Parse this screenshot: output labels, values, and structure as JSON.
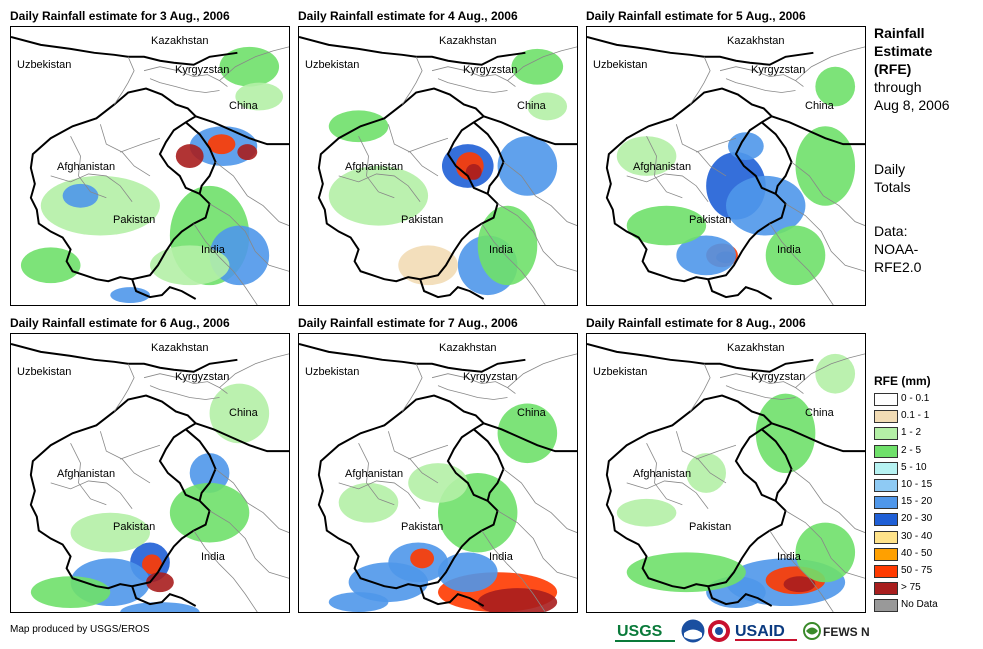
{
  "panels": [
    {
      "title": "Daily Rainfall estimate for 3 Aug., 2006"
    },
    {
      "title": "Daily Rainfall estimate for 4 Aug., 2006"
    },
    {
      "title": "Daily Rainfall estimate for 5 Aug., 2006"
    },
    {
      "title": "Daily Rainfall estimate for 6 Aug., 2006"
    },
    {
      "title": "Daily Rainfall estimate for 7 Aug., 2006"
    },
    {
      "title": "Daily Rainfall estimate for 8 Aug., 2006"
    }
  ],
  "map_labels": {
    "kazakhstan": "Kazakhstan",
    "uzbekistan": "Uzbekistan",
    "kyrgyzstan": "Kyrgyzstan",
    "china": "China",
    "afghanistan": "Afghanistan",
    "pakistan": "Pakistan",
    "india": "India"
  },
  "side": {
    "title_lines": [
      "Rainfall",
      "Estimate",
      "(RFE)"
    ],
    "through_lines": [
      "through",
      "Aug 8, 2006"
    ],
    "totals_lines": [
      "Daily",
      "Totals"
    ],
    "data_lines": [
      "Data:",
      "NOAA-",
      "RFE2.0"
    ]
  },
  "legend": {
    "title": "RFE (mm)",
    "items": [
      {
        "label": "0 - 0.1",
        "color": "#ffffff"
      },
      {
        "label": "0.1 - 1",
        "color": "#f2dcb5"
      },
      {
        "label": "1 - 2",
        "color": "#b4f0a6"
      },
      {
        "label": "2 - 5",
        "color": "#6fe06a"
      },
      {
        "label": "5 - 10",
        "color": "#b6f2f2"
      },
      {
        "label": "10 - 15",
        "color": "#8ecaf4"
      },
      {
        "label": "15 - 20",
        "color": "#4f97ea"
      },
      {
        "label": "20 - 30",
        "color": "#1f5fd6"
      },
      {
        "label": "30 - 40",
        "color": "#ffe38a"
      },
      {
        "label": "40 - 50",
        "color": "#ffa000"
      },
      {
        "label": "50 - 75",
        "color": "#ff3a00"
      },
      {
        "label": "> 75",
        "color": "#a81e1e"
      },
      {
        "label": "No Data",
        "color": "#999999"
      }
    ]
  },
  "footer": {
    "credit": "Map produced by USGS/EROS",
    "logos": [
      "USGS",
      "NOAA",
      "NWS",
      "USAID",
      "FEWS NET"
    ]
  }
}
